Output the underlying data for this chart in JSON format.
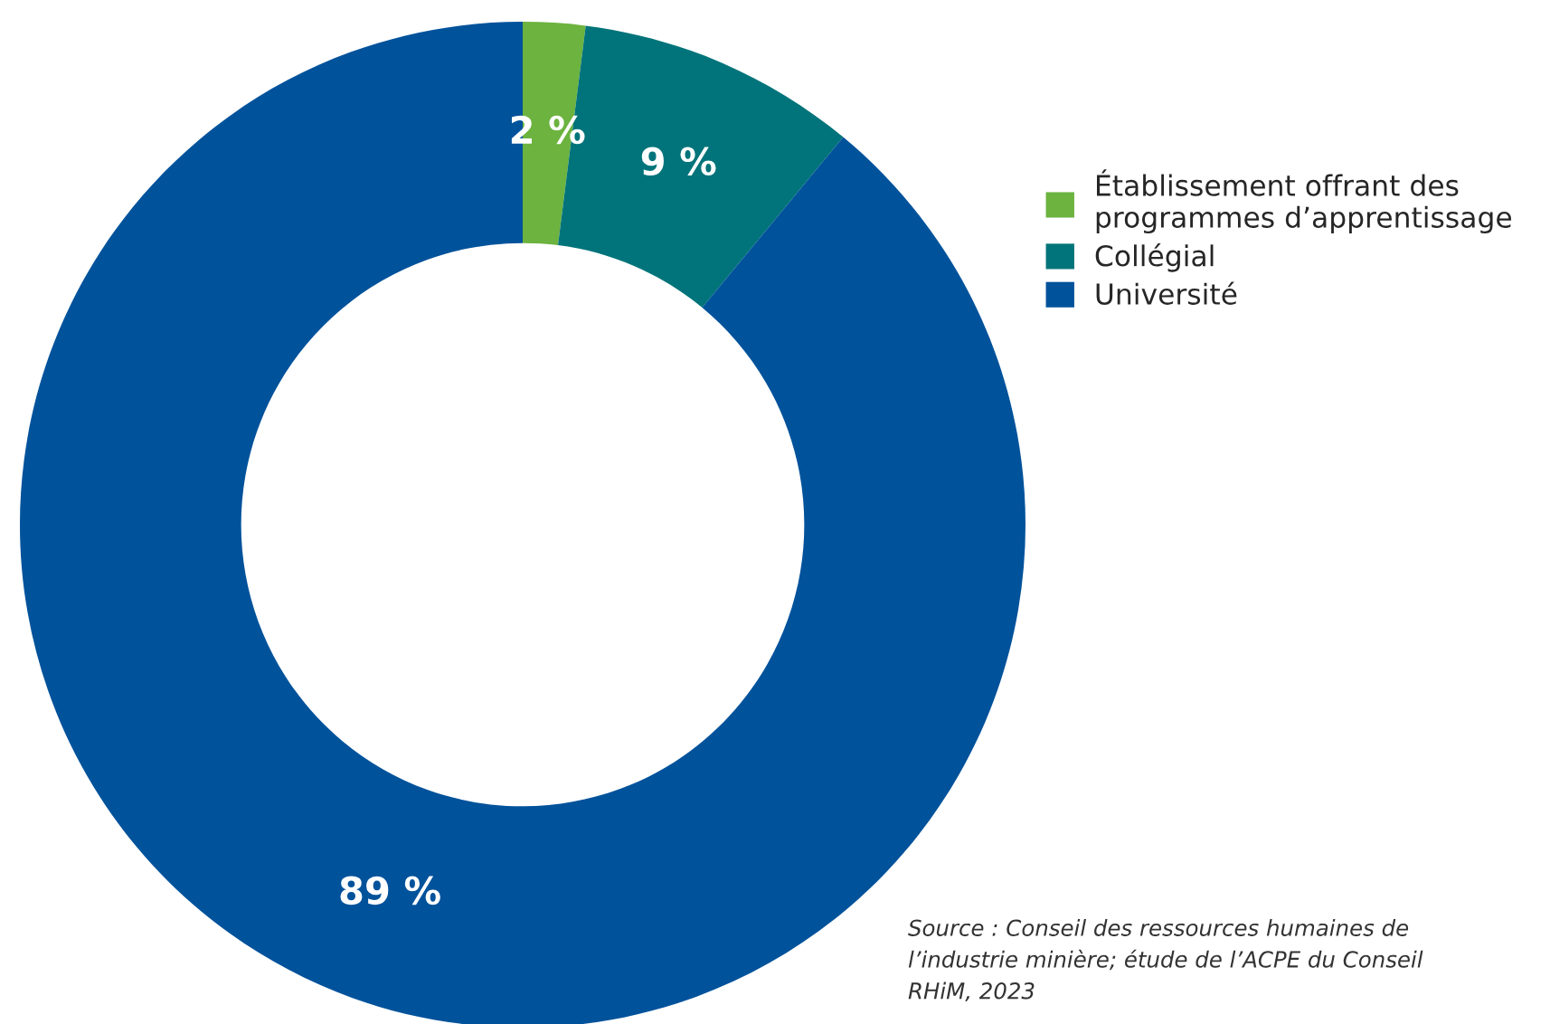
{
  "chart_data": {
    "type": "donut",
    "categories": [
      "Établissement offrant des\nprogrammes d’apprentissage",
      "Collégial",
      "Université"
    ],
    "values": [
      2,
      9,
      89
    ],
    "value_labels": [
      "2 %",
      "9 %",
      "89 %"
    ],
    "colors": [
      "#6cb33f",
      "#00747a",
      "#00529b"
    ],
    "legend": "right",
    "annotations": [
      "Source : Conseil des ressources humaines de\nl’industrie minière; étude de l’ACPE du Conseil\nRHiM, 2023"
    ]
  }
}
